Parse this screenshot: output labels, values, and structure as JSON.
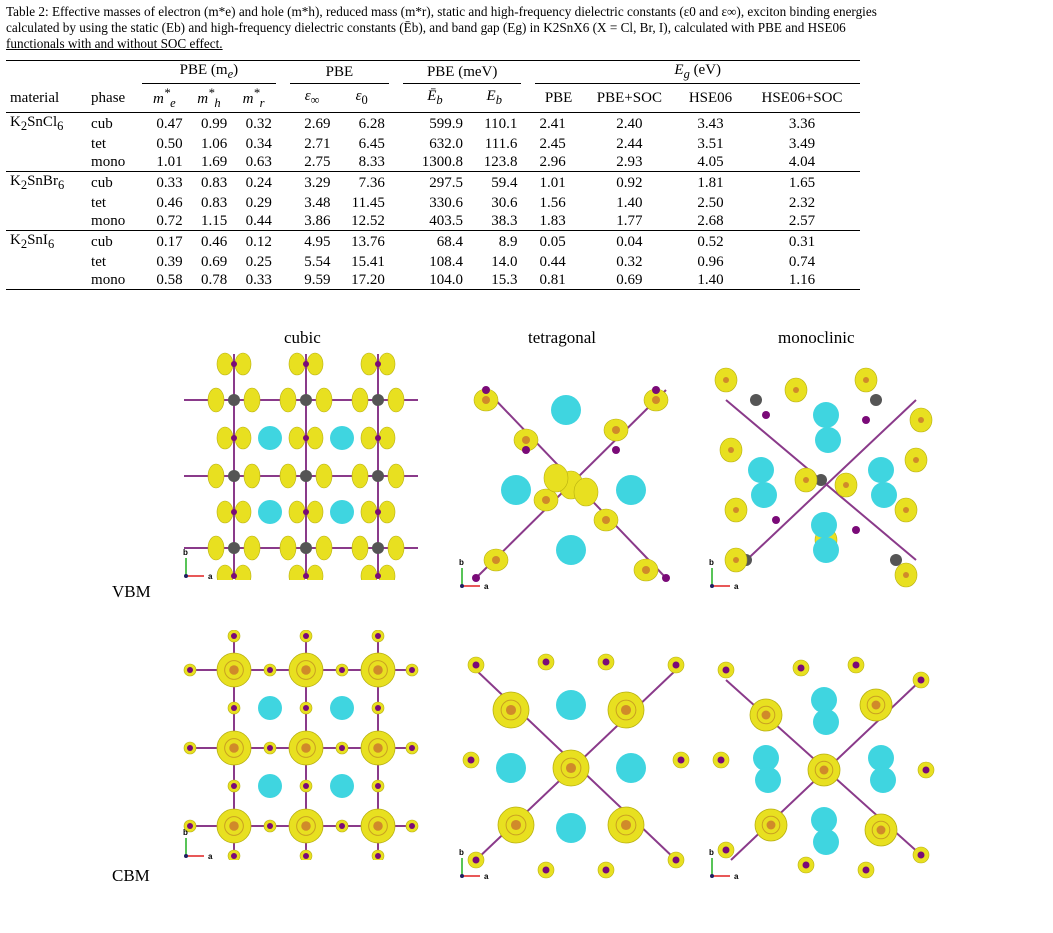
{
  "caption": {
    "line1": "Table 2: Effective masses of electron (m*e) and hole (m*h), reduced mass (m*r), static and high-frequency dielectric constants (ε0 and ε∞), exciton binding energies",
    "line2": "calculated by using the static (Eb) and high-frequency dielectric constants (Ēb), and band gap (Eg) in K2SnX6 (X = Cl, Br, I), calculated with PBE and HSE06",
    "line3": "functionals with and without SOC effect."
  },
  "table": {
    "group_headers": {
      "pbe_me": "PBE (m",
      "pbe_me_sub": "e",
      "pbe": "PBE",
      "pbe_mev": "PBE (meV)",
      "eg": "E",
      "eg_sub": "g",
      "eg_unit": " (eV)"
    },
    "col_headers": {
      "material": "material",
      "phase": "phase",
      "pbe": "PBE",
      "pbe_soc": "PBE+SOC",
      "hse": "HSE06",
      "hse_soc": "HSE06+SOC"
    },
    "rows": [
      {
        "material": "K2SnCl6",
        "phase": "cub",
        "me": "0.47",
        "mh": "0.99",
        "mr": "0.32",
        "einf": "2.69",
        "e0": "6.28",
        "ebbar": "599.9",
        "eb": "110.1",
        "pbe": "2.41",
        "pbesoc": "2.40",
        "hse": "3.43",
        "hsesoc": "3.36"
      },
      {
        "material": "",
        "phase": "tet",
        "me": "0.50",
        "mh": "1.06",
        "mr": "0.34",
        "einf": "2.71",
        "e0": "6.45",
        "ebbar": "632.0",
        "eb": "111.6",
        "pbe": "2.45",
        "pbesoc": "2.44",
        "hse": "3.51",
        "hsesoc": "3.49"
      },
      {
        "material": "",
        "phase": "mono",
        "me": "1.01",
        "mh": "1.69",
        "mr": "0.63",
        "einf": "2.75",
        "e0": "8.33",
        "ebbar": "1300.8",
        "eb": "123.8",
        "pbe": "2.96",
        "pbesoc": "2.93",
        "hse": "4.05",
        "hsesoc": "4.04"
      },
      {
        "material": "K2SnBr6",
        "phase": "cub",
        "me": "0.33",
        "mh": "0.83",
        "mr": "0.24",
        "einf": "3.29",
        "e0": "7.36",
        "ebbar": "297.5",
        "eb": "59.4",
        "pbe": "1.01",
        "pbesoc": "0.92",
        "hse": "1.81",
        "hsesoc": "1.65"
      },
      {
        "material": "",
        "phase": "tet",
        "me": "0.46",
        "mh": "0.83",
        "mr": "0.29",
        "einf": "3.48",
        "e0": "11.45",
        "ebbar": "330.6",
        "eb": "30.6",
        "pbe": "1.56",
        "pbesoc": "1.40",
        "hse": "2.50",
        "hsesoc": "2.32"
      },
      {
        "material": "",
        "phase": "mono",
        "me": "0.72",
        "mh": "1.15",
        "mr": "0.44",
        "einf": "3.86",
        "e0": "12.52",
        "ebbar": "403.5",
        "eb": "38.3",
        "pbe": "1.83",
        "pbesoc": "1.77",
        "hse": "2.68",
        "hsesoc": "2.57"
      },
      {
        "material": "K2SnI6",
        "phase": "cub",
        "me": "0.17",
        "mh": "0.46",
        "mr": "0.12",
        "einf": "4.95",
        "e0": "13.76",
        "ebbar": "68.4",
        "eb": "8.9",
        "pbe": "0.05",
        "pbesoc": "0.04",
        "hse": "0.52",
        "hsesoc": "0.31"
      },
      {
        "material": "",
        "phase": "tet",
        "me": "0.39",
        "mh": "0.69",
        "mr": "0.25",
        "einf": "5.54",
        "e0": "15.41",
        "ebbar": "108.4",
        "eb": "14.0",
        "pbe": "0.44",
        "pbesoc": "0.32",
        "hse": "0.96",
        "hsesoc": "0.74"
      },
      {
        "material": "",
        "phase": "mono",
        "me": "0.58",
        "mh": "0.78",
        "mr": "0.33",
        "einf": "9.59",
        "e0": "17.20",
        "ebbar": "104.0",
        "eb": "15.3",
        "pbe": "0.81",
        "pbesoc": "0.69",
        "hse": "1.40",
        "hsesoc": "1.16"
      }
    ]
  },
  "figure": {
    "columns": {
      "cubic": "cubic",
      "tetragonal": "tetragonal",
      "monoclinic": "monoclinic"
    },
    "rows": {
      "vbm": "VBM",
      "cbm": "CBM"
    },
    "axis": {
      "b": "b",
      "a": "a"
    },
    "colors": {
      "isosurface": "#e8e020",
      "potassium": "#3fd5e0",
      "tin": "#555555",
      "halide": "#7a0a78",
      "bond": "#8a3a8a"
    }
  }
}
